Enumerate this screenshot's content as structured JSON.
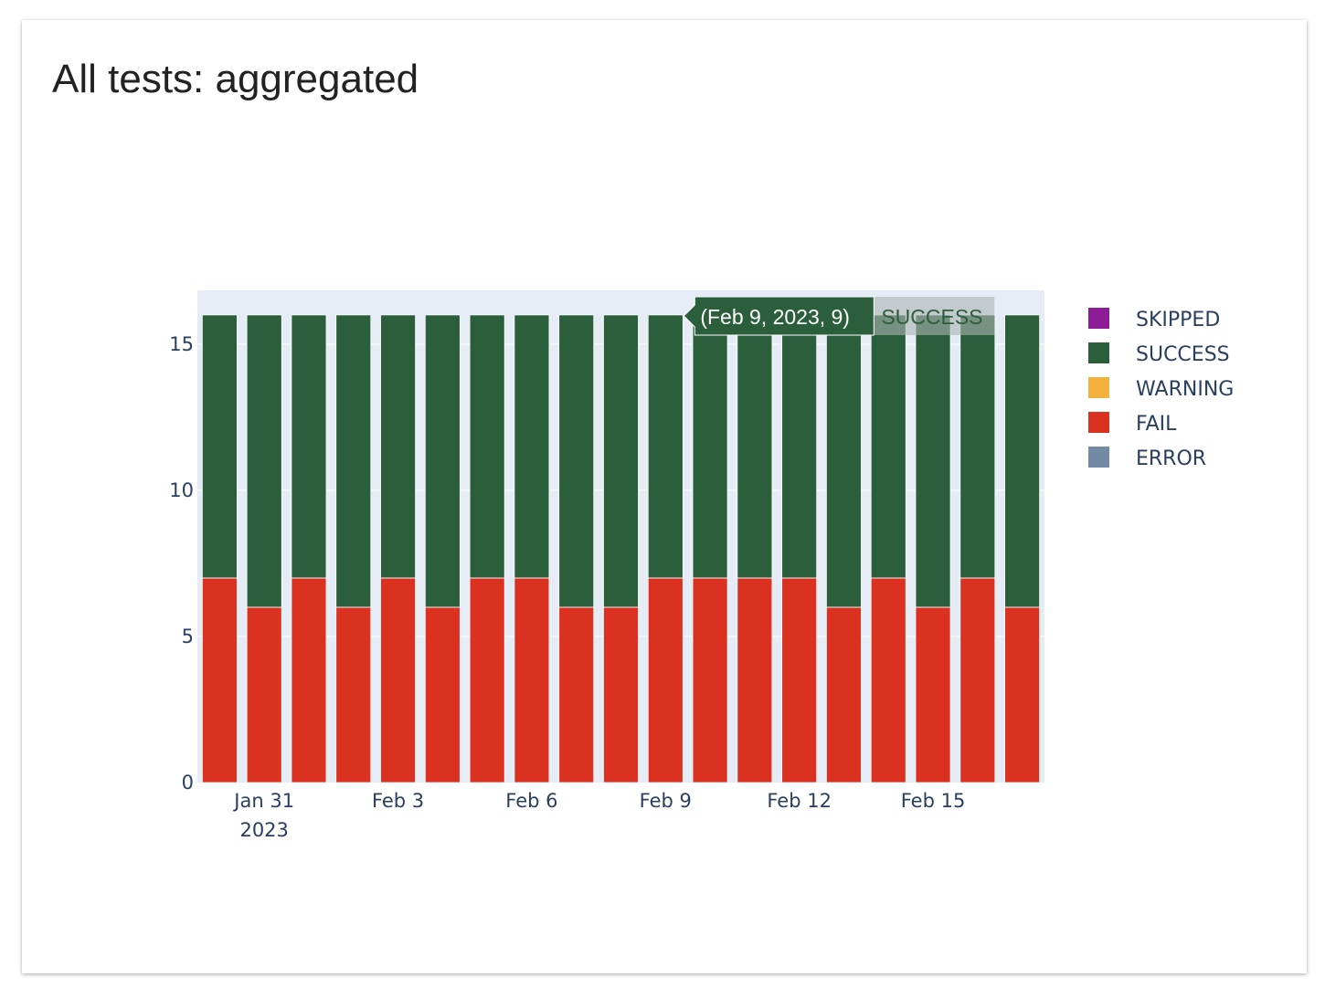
{
  "chart_data": {
    "type": "bar",
    "stacked": true,
    "title": "All tests: aggregated",
    "categories": [
      "2023-01-30",
      "2023-01-31",
      "2023-02-01",
      "2023-02-02",
      "2023-02-03",
      "2023-02-04",
      "2023-02-05",
      "2023-02-06",
      "2023-02-07",
      "2023-02-08",
      "2023-02-09",
      "2023-02-10",
      "2023-02-11",
      "2023-02-12",
      "2023-02-13",
      "2023-02-14",
      "2023-02-15",
      "2023-02-16",
      "2023-02-17"
    ],
    "series": [
      {
        "name": "SKIPPED",
        "color": "#8e1c96",
        "values": [
          0,
          0,
          0,
          0,
          0,
          0,
          0,
          0,
          0,
          0,
          0,
          0,
          0,
          0,
          0,
          0,
          0,
          0,
          0
        ]
      },
      {
        "name": "SUCCESS",
        "color": "#2b5e3b",
        "values": [
          9,
          10,
          9,
          10,
          9,
          10,
          9,
          9,
          10,
          10,
          9,
          9,
          9,
          9,
          10,
          9,
          10,
          9,
          10
        ]
      },
      {
        "name": "WARNING",
        "color": "#f4b13e",
        "values": [
          0,
          0,
          0,
          0,
          0,
          0,
          0,
          0,
          0,
          0,
          0,
          0,
          0,
          0,
          0,
          0,
          0,
          0,
          0
        ]
      },
      {
        "name": "FAIL",
        "color": "#db3120",
        "values": [
          7,
          6,
          7,
          6,
          7,
          6,
          7,
          7,
          6,
          6,
          7,
          7,
          7,
          7,
          6,
          7,
          6,
          7,
          6
        ]
      },
      {
        "name": "ERROR",
        "color": "#728aa3",
        "values": [
          0,
          0,
          0,
          0,
          0,
          0,
          0,
          0,
          0,
          0,
          0,
          0,
          0,
          0,
          0,
          0,
          0,
          0,
          0
        ]
      }
    ],
    "stack_order": [
      "FAIL",
      "SUCCESS"
    ],
    "xticks": [
      {
        "date": "2023-01-31",
        "label": "Jan 31",
        "sub": "2023"
      },
      {
        "date": "2023-02-03",
        "label": "Feb 3"
      },
      {
        "date": "2023-02-06",
        "label": "Feb 6"
      },
      {
        "date": "2023-02-09",
        "label": "Feb 9"
      },
      {
        "date": "2023-02-12",
        "label": "Feb 12"
      },
      {
        "date": "2023-02-15",
        "label": "Feb 15"
      }
    ],
    "yticks": [
      0,
      5,
      10,
      15
    ],
    "ylim": [
      0,
      16.84
    ],
    "grid": true,
    "plot_bg": "#e5ecf6",
    "legend_placement": "right",
    "hover": {
      "category": "2023-02-09",
      "series": "SUCCESS",
      "label": "(Feb 9, 2023, 9)",
      "name": "SUCCESS"
    }
  }
}
